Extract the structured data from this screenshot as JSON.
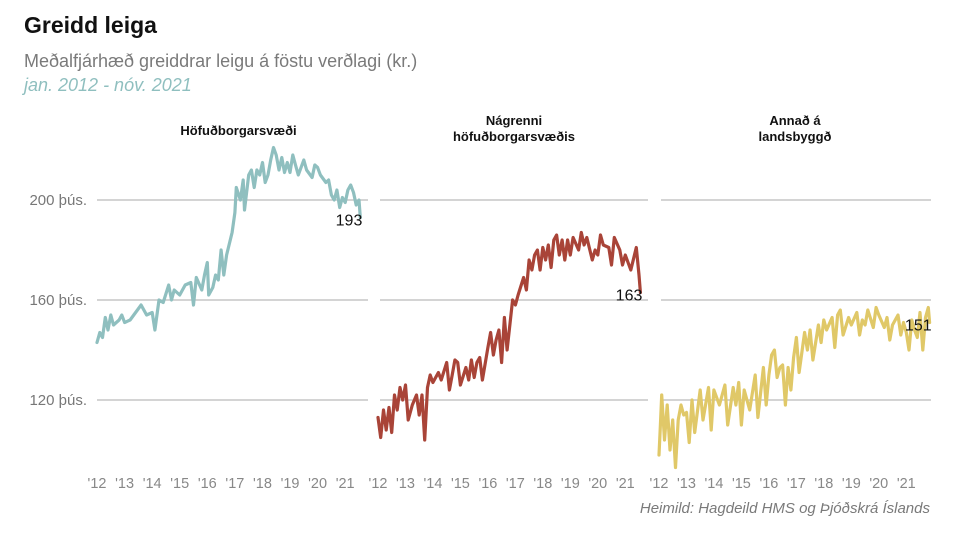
{
  "header": {
    "title": "Greidd leiga",
    "subtitle": "Meðalfjárhæð greiddrar leigu á föstu verðlagi (kr.)",
    "period": "jan. 2012 - nóv. 2021"
  },
  "source": "Heimild: Hagdeild HMS og Þjóðskrá Íslands",
  "chart_data": {
    "type": "line",
    "yticks": [
      {
        "value": 120,
        "label": "120 þús."
      },
      {
        "value": 160,
        "label": "160 þús."
      },
      {
        "value": 200,
        "label": "200 þús."
      }
    ],
    "ylim": [
      92,
      228
    ],
    "xticks": [
      "'12",
      "'13",
      "'14",
      "'15",
      "'16",
      "'17",
      "'18",
      "'19",
      "'20",
      "'21"
    ],
    "xlim": [
      2012,
      2021.9
    ],
    "grid": true,
    "panels": [
      {
        "title_lines": [
          "Höfuðborgarsvæði"
        ],
        "color": "#8fbfbf",
        "end_label": "193",
        "end_value": 193,
        "points": [
          [
            2012.0,
            143
          ],
          [
            2012.1,
            147
          ],
          [
            2012.2,
            145
          ],
          [
            2012.3,
            153
          ],
          [
            2012.4,
            148
          ],
          [
            2012.5,
            154
          ],
          [
            2012.6,
            150
          ],
          [
            2012.7,
            151
          ],
          [
            2012.8,
            152
          ],
          [
            2012.9,
            154
          ],
          [
            2013.0,
            151
          ],
          [
            2013.2,
            152
          ],
          [
            2013.4,
            155
          ],
          [
            2013.6,
            158
          ],
          [
            2013.8,
            154
          ],
          [
            2014.0,
            155
          ],
          [
            2014.1,
            148
          ],
          [
            2014.25,
            160
          ],
          [
            2014.4,
            159
          ],
          [
            2014.6,
            166
          ],
          [
            2014.7,
            160
          ],
          [
            2014.8,
            164
          ],
          [
            2015.0,
            162
          ],
          [
            2015.2,
            166
          ],
          [
            2015.4,
            167
          ],
          [
            2015.5,
            158
          ],
          [
            2015.6,
            169
          ],
          [
            2015.8,
            164
          ],
          [
            2015.9,
            170
          ],
          [
            2016.0,
            175
          ],
          [
            2016.05,
            162
          ],
          [
            2016.2,
            165
          ],
          [
            2016.3,
            170
          ],
          [
            2016.4,
            168
          ],
          [
            2016.5,
            180
          ],
          [
            2016.6,
            170
          ],
          [
            2016.7,
            178
          ],
          [
            2016.9,
            187
          ],
          [
            2017.0,
            195
          ],
          [
            2017.05,
            205
          ],
          [
            2017.2,
            200
          ],
          [
            2017.3,
            208
          ],
          [
            2017.35,
            196
          ],
          [
            2017.5,
            210
          ],
          [
            2017.6,
            212
          ],
          [
            2017.7,
            205
          ],
          [
            2017.8,
            212
          ],
          [
            2017.9,
            210
          ],
          [
            2018.0,
            215
          ],
          [
            2018.1,
            207
          ],
          [
            2018.2,
            210
          ],
          [
            2018.3,
            216
          ],
          [
            2018.4,
            221
          ],
          [
            2018.5,
            218
          ],
          [
            2018.6,
            212
          ],
          [
            2018.7,
            217
          ],
          [
            2018.8,
            211
          ],
          [
            2018.9,
            215
          ],
          [
            2019.0,
            211
          ],
          [
            2019.1,
            218
          ],
          [
            2019.2,
            214
          ],
          [
            2019.3,
            210
          ],
          [
            2019.5,
            216
          ],
          [
            2019.6,
            212
          ],
          [
            2019.8,
            209
          ],
          [
            2019.9,
            214
          ],
          [
            2020.0,
            213
          ],
          [
            2020.1,
            210
          ],
          [
            2020.3,
            207
          ],
          [
            2020.4,
            208
          ],
          [
            2020.5,
            202
          ],
          [
            2020.6,
            200
          ],
          [
            2020.7,
            204
          ],
          [
            2020.8,
            197
          ],
          [
            2020.9,
            201
          ],
          [
            2021.0,
            199
          ],
          [
            2021.1,
            204
          ],
          [
            2021.2,
            206
          ],
          [
            2021.3,
            203
          ],
          [
            2021.4,
            198
          ],
          [
            2021.5,
            200
          ],
          [
            2021.55,
            193
          ]
        ]
      },
      {
        "title_lines": [
          "Nágrenni",
          "höfuðborgarsvæðis"
        ],
        "color": "#a94438",
        "end_label": "163",
        "end_value": 163,
        "points": [
          [
            2012.0,
            113
          ],
          [
            2012.1,
            105
          ],
          [
            2012.2,
            116
          ],
          [
            2012.3,
            108
          ],
          [
            2012.4,
            117
          ],
          [
            2012.5,
            107
          ],
          [
            2012.6,
            122
          ],
          [
            2012.7,
            116
          ],
          [
            2012.8,
            125
          ],
          [
            2012.9,
            120
          ],
          [
            2013.0,
            126
          ],
          [
            2013.1,
            112
          ],
          [
            2013.25,
            118
          ],
          [
            2013.4,
            122
          ],
          [
            2013.5,
            114
          ],
          [
            2013.6,
            122
          ],
          [
            2013.7,
            104
          ],
          [
            2013.8,
            125
          ],
          [
            2013.9,
            130
          ],
          [
            2014.0,
            127
          ],
          [
            2014.2,
            131
          ],
          [
            2014.3,
            128
          ],
          [
            2014.5,
            135
          ],
          [
            2014.6,
            124
          ],
          [
            2014.7,
            130
          ],
          [
            2014.8,
            136
          ],
          [
            2014.9,
            135
          ],
          [
            2015.0,
            126
          ],
          [
            2015.2,
            133
          ],
          [
            2015.3,
            128
          ],
          [
            2015.4,
            136
          ],
          [
            2015.5,
            129
          ],
          [
            2015.6,
            135
          ],
          [
            2015.7,
            137
          ],
          [
            2015.8,
            128
          ],
          [
            2016.0,
            141
          ],
          [
            2016.1,
            147
          ],
          [
            2016.2,
            138
          ],
          [
            2016.3,
            144
          ],
          [
            2016.4,
            148
          ],
          [
            2016.5,
            135
          ],
          [
            2016.6,
            153
          ],
          [
            2016.7,
            140
          ],
          [
            2016.9,
            160
          ],
          [
            2017.0,
            158
          ],
          [
            2017.1,
            162
          ],
          [
            2017.3,
            169
          ],
          [
            2017.4,
            164
          ],
          [
            2017.5,
            176
          ],
          [
            2017.6,
            172
          ],
          [
            2017.7,
            178
          ],
          [
            2017.8,
            180
          ],
          [
            2017.9,
            172
          ],
          [
            2018.0,
            181
          ],
          [
            2018.1,
            176
          ],
          [
            2018.2,
            182
          ],
          [
            2018.3,
            173
          ],
          [
            2018.4,
            184
          ],
          [
            2018.5,
            186
          ],
          [
            2018.6,
            178
          ],
          [
            2018.7,
            184
          ],
          [
            2018.8,
            176
          ],
          [
            2018.9,
            184
          ],
          [
            2019.0,
            178
          ],
          [
            2019.1,
            185
          ],
          [
            2019.3,
            180
          ],
          [
            2019.4,
            187
          ],
          [
            2019.5,
            182
          ],
          [
            2019.6,
            185
          ],
          [
            2019.8,
            176
          ],
          [
            2019.9,
            180
          ],
          [
            2020.0,
            178
          ],
          [
            2020.1,
            186
          ],
          [
            2020.2,
            182
          ],
          [
            2020.4,
            181
          ],
          [
            2020.5,
            174
          ],
          [
            2020.6,
            185
          ],
          [
            2020.8,
            180
          ],
          [
            2020.9,
            174
          ],
          [
            2021.0,
            178
          ],
          [
            2021.2,
            172
          ],
          [
            2021.4,
            181
          ],
          [
            2021.5,
            170
          ],
          [
            2021.55,
            163
          ]
        ]
      },
      {
        "title_lines": [
          "Annað á",
          "landsbyggð"
        ],
        "color": "#e0c868",
        "end_label": "151",
        "end_value": 151,
        "points": [
          [
            2012.0,
            98
          ],
          [
            2012.05,
            110
          ],
          [
            2012.1,
            122
          ],
          [
            2012.2,
            104
          ],
          [
            2012.3,
            118
          ],
          [
            2012.4,
            100
          ],
          [
            2012.5,
            112
          ],
          [
            2012.6,
            93
          ],
          [
            2012.7,
            112
          ],
          [
            2012.8,
            118
          ],
          [
            2012.9,
            114
          ],
          [
            2013.0,
            115
          ],
          [
            2013.1,
            103
          ],
          [
            2013.2,
            120
          ],
          [
            2013.3,
            107
          ],
          [
            2013.5,
            124
          ],
          [
            2013.6,
            112
          ],
          [
            2013.8,
            125
          ],
          [
            2013.9,
            108
          ],
          [
            2014.0,
            124
          ],
          [
            2014.2,
            118
          ],
          [
            2014.4,
            126
          ],
          [
            2014.5,
            110
          ],
          [
            2014.7,
            125
          ],
          [
            2014.8,
            118
          ],
          [
            2014.9,
            127
          ],
          [
            2015.0,
            110
          ],
          [
            2015.1,
            124
          ],
          [
            2015.3,
            116
          ],
          [
            2015.5,
            130
          ],
          [
            2015.6,
            113
          ],
          [
            2015.8,
            133
          ],
          [
            2015.9,
            118
          ],
          [
            2016.0,
            130
          ],
          [
            2016.1,
            138
          ],
          [
            2016.2,
            140
          ],
          [
            2016.3,
            129
          ],
          [
            2016.4,
            133
          ],
          [
            2016.5,
            134
          ],
          [
            2016.6,
            118
          ],
          [
            2016.7,
            133
          ],
          [
            2016.8,
            124
          ],
          [
            2016.9,
            137
          ],
          [
            2017.0,
            145
          ],
          [
            2017.1,
            131
          ],
          [
            2017.3,
            147
          ],
          [
            2017.4,
            140
          ],
          [
            2017.5,
            148
          ],
          [
            2017.6,
            136
          ],
          [
            2017.8,
            150
          ],
          [
            2017.9,
            143
          ],
          [
            2018.0,
            152
          ],
          [
            2018.1,
            148
          ],
          [
            2018.3,
            153
          ],
          [
            2018.4,
            141
          ],
          [
            2018.5,
            154
          ],
          [
            2018.6,
            156
          ],
          [
            2018.7,
            146
          ],
          [
            2018.9,
            153
          ],
          [
            2019.0,
            150
          ],
          [
            2019.2,
            155
          ],
          [
            2019.3,
            146
          ],
          [
            2019.4,
            152
          ],
          [
            2019.5,
            150
          ],
          [
            2019.6,
            156
          ],
          [
            2019.8,
            149
          ],
          [
            2019.9,
            157
          ],
          [
            2020.0,
            154
          ],
          [
            2020.2,
            149
          ],
          [
            2020.3,
            153
          ],
          [
            2020.4,
            144
          ],
          [
            2020.5,
            150
          ],
          [
            2020.7,
            154
          ],
          [
            2020.8,
            146
          ],
          [
            2020.9,
            151
          ],
          [
            2021.0,
            147
          ],
          [
            2021.1,
            140
          ],
          [
            2021.2,
            152
          ],
          [
            2021.3,
            148
          ],
          [
            2021.4,
            145
          ],
          [
            2021.5,
            155
          ],
          [
            2021.6,
            140
          ],
          [
            2021.7,
            153
          ],
          [
            2021.8,
            157
          ],
          [
            2021.85,
            151
          ]
        ]
      }
    ]
  }
}
